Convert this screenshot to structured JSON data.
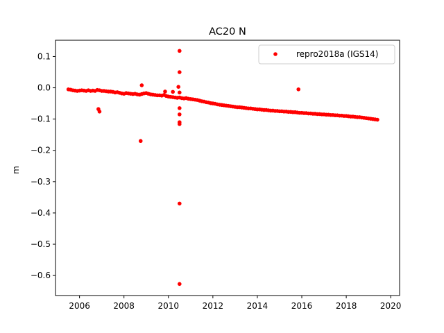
{
  "chart_data": {
    "type": "scatter",
    "title": "AC20 N",
    "xlabel": "",
    "ylabel": "m",
    "xlim": [
      2004.92,
      2020.4
    ],
    "ylim": [
      -0.664,
      0.152
    ],
    "x_ticks": [
      2006,
      2008,
      2010,
      2012,
      2014,
      2016,
      2018,
      2020
    ],
    "y_ticks": [
      0.1,
      0.0,
      -0.1,
      -0.2,
      -0.3,
      -0.4,
      -0.5,
      -0.6
    ],
    "x_tick_labels": [
      "2006",
      "2008",
      "2010",
      "2012",
      "2014",
      "2016",
      "2018",
      "2020"
    ],
    "y_tick_labels": [
      "0.1",
      "0.0",
      "−0.1",
      "−0.2",
      "−0.3",
      "−0.4",
      "−0.5",
      "−0.6"
    ],
    "grid": false,
    "legend_position": "top-right",
    "series": [
      {
        "name": "repro2018a (IGS14)",
        "color": "#ff0000",
        "marker": "circle",
        "x": [
          2005.5,
          2005.6,
          2005.7,
          2005.8,
          2005.9,
          2006.0,
          2006.1,
          2006.2,
          2006.3,
          2006.4,
          2006.5,
          2006.6,
          2006.7,
          2006.8,
          2006.9,
          2007.0,
          2007.1,
          2007.2,
          2007.3,
          2007.4,
          2007.5,
          2007.6,
          2007.7,
          2007.8,
          2007.9,
          2008.0,
          2008.1,
          2008.2,
          2008.3,
          2008.4,
          2008.5,
          2008.6,
          2008.7,
          2008.8,
          2008.9,
          2009.0,
          2009.1,
          2009.2,
          2009.3,
          2009.4,
          2009.5,
          2009.6,
          2009.7,
          2009.8,
          2009.9,
          2010.0,
          2010.1,
          2010.2,
          2010.3,
          2010.4,
          2010.5,
          2010.6,
          2010.7,
          2010.8,
          2010.9,
          2011.0,
          2011.1,
          2011.2,
          2011.3,
          2011.4,
          2011.5,
          2011.6,
          2011.7,
          2011.8,
          2011.9,
          2012.0,
          2012.1,
          2012.2,
          2012.3,
          2012.4,
          2012.5,
          2012.6,
          2012.7,
          2012.8,
          2012.9,
          2013.0,
          2013.1,
          2013.2,
          2013.3,
          2013.4,
          2013.5,
          2013.6,
          2013.7,
          2013.8,
          2013.9,
          2014.0,
          2014.1,
          2014.2,
          2014.3,
          2014.4,
          2014.5,
          2014.6,
          2014.7,
          2014.8,
          2014.9,
          2015.0,
          2015.1,
          2015.2,
          2015.3,
          2015.4,
          2015.5,
          2015.6,
          2015.7,
          2015.8,
          2015.9,
          2016.0,
          2016.1,
          2016.2,
          2016.3,
          2016.4,
          2016.5,
          2016.6,
          2016.7,
          2016.8,
          2016.9,
          2017.0,
          2017.1,
          2017.2,
          2017.3,
          2017.4,
          2017.5,
          2017.6,
          2017.7,
          2017.8,
          2017.9,
          2018.0,
          2018.1,
          2018.2,
          2018.3,
          2018.4,
          2018.5,
          2018.6,
          2018.7,
          2018.8,
          2018.9,
          2019.0,
          2019.1,
          2019.2,
          2019.3,
          2019.4,
          2006.85,
          2006.9,
          2008.75,
          2008.8,
          2009.85,
          2010.2,
          2010.45,
          2010.5,
          2010.5,
          2010.5,
          2010.5,
          2010.5,
          2010.5,
          2010.5,
          2010.5,
          2010.5,
          2015.85
        ],
        "y": [
          -0.005,
          -0.006,
          -0.008,
          -0.009,
          -0.01,
          -0.009,
          -0.008,
          -0.009,
          -0.01,
          -0.008,
          -0.01,
          -0.009,
          -0.01,
          -0.007,
          -0.008,
          -0.01,
          -0.01,
          -0.011,
          -0.012,
          -0.012,
          -0.013,
          -0.015,
          -0.014,
          -0.016,
          -0.018,
          -0.019,
          -0.017,
          -0.018,
          -0.019,
          -0.02,
          -0.019,
          -0.021,
          -0.022,
          -0.02,
          -0.018,
          -0.017,
          -0.019,
          -0.021,
          -0.022,
          -0.023,
          -0.024,
          -0.024,
          -0.025,
          -0.023,
          -0.026,
          -0.028,
          -0.029,
          -0.03,
          -0.031,
          -0.032,
          -0.031,
          -0.033,
          -0.034,
          -0.033,
          -0.035,
          -0.036,
          -0.037,
          -0.038,
          -0.039,
          -0.041,
          -0.043,
          -0.044,
          -0.046,
          -0.047,
          -0.049,
          -0.05,
          -0.051,
          -0.053,
          -0.054,
          -0.055,
          -0.056,
          -0.057,
          -0.058,
          -0.059,
          -0.06,
          -0.061,
          -0.062,
          -0.062,
          -0.063,
          -0.064,
          -0.065,
          -0.066,
          -0.066,
          -0.067,
          -0.068,
          -0.069,
          -0.069,
          -0.07,
          -0.071,
          -0.071,
          -0.072,
          -0.073,
          -0.073,
          -0.074,
          -0.074,
          -0.075,
          -0.075,
          -0.076,
          -0.076,
          -0.077,
          -0.077,
          -0.078,
          -0.078,
          -0.079,
          -0.08,
          -0.08,
          -0.081,
          -0.081,
          -0.082,
          -0.082,
          -0.083,
          -0.083,
          -0.084,
          -0.084,
          -0.085,
          -0.085,
          -0.086,
          -0.086,
          -0.087,
          -0.087,
          -0.088,
          -0.088,
          -0.089,
          -0.089,
          -0.09,
          -0.09,
          -0.091,
          -0.092,
          -0.092,
          -0.093,
          -0.094,
          -0.094,
          -0.095,
          -0.096,
          -0.097,
          -0.098,
          -0.099,
          -0.1,
          -0.101,
          -0.102,
          -0.068,
          -0.076,
          -0.17,
          0.008,
          -0.012,
          -0.013,
          0.003,
          0.118,
          0.05,
          -0.065,
          -0.085,
          -0.11,
          -0.116,
          -0.37,
          -0.627,
          -0.015,
          -0.005
        ]
      }
    ]
  }
}
